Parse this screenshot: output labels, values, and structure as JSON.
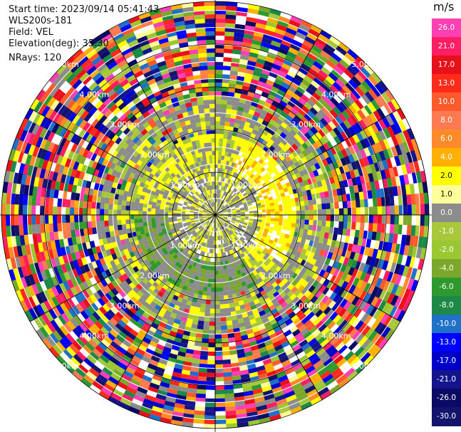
{
  "info": {
    "start_time": "Start time: 2023/09/14 05:41:43",
    "device": "WLS200s-181",
    "field": "Field: VEL",
    "elevation": "Elevation(deg): 35.30",
    "nrays": "NRays: 120"
  },
  "colorbar": {
    "unit": "m/s",
    "ticks": [
      "26.0",
      "21.0",
      "17.0",
      "13.0",
      "10.0",
      "8.0",
      "6.0",
      "4.0",
      "2.0",
      "1.0",
      "0.0",
      "-1.0",
      "-2.0",
      "-4.0",
      "-6.0",
      "-8.0",
      "-10.0",
      "-13.0",
      "-17.0",
      "-21.0",
      "-26.0",
      "-30.0"
    ],
    "colors": [
      "#ff3fb4",
      "#ff1e64",
      "#e8111b",
      "#ff2a1a",
      "#ff5a2c",
      "#ff7a50",
      "#ff8a2a",
      "#ffb000",
      "#ffff00",
      "#ffff9a",
      "#8c8c8c",
      "#a8c83c",
      "#9bc832",
      "#7ba82a",
      "#2e9a2e",
      "#1c8a46",
      "#1e70c8",
      "#0000ff",
      "#0000c8",
      "#14148c",
      "#0a0a64",
      "#14146e"
    ]
  },
  "chart_data": {
    "type": "heatmap",
    "projection": "polar (PPI)",
    "field": "VEL",
    "nrays": 120,
    "range_rings_km": [
      1.0,
      2.0,
      3.0,
      4.0,
      5.0
    ],
    "ring_labels": [
      "1.00km",
      "2.00km",
      "3.00km",
      "4.00km",
      "5.00km"
    ],
    "colorbar_range": [
      -30.0,
      26.0
    ],
    "unit": "m/s"
  }
}
